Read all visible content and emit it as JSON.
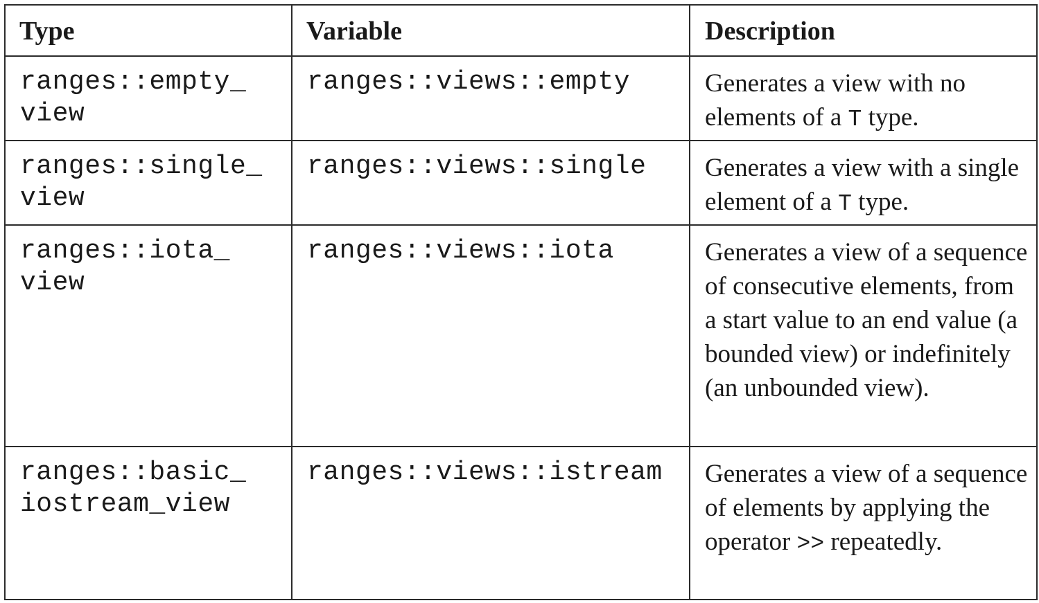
{
  "headers": {
    "type": "Type",
    "variable": "Variable",
    "description": "Description"
  },
  "rows": [
    {
      "type": "ranges::empty_\nview",
      "variable": "ranges::views::empty",
      "description": {
        "before": "Generates a view with no elements of a ",
        "code": "T",
        "after": " type."
      }
    },
    {
      "type": "ranges::single_\nview",
      "variable": "ranges::views::single",
      "description": {
        "before": "Generates a view with a single element of a ",
        "code": "T",
        "after": " type."
      }
    },
    {
      "type": "ranges::iota_\nview",
      "variable": "ranges::views::iota",
      "description": {
        "before": "Generates a view of a sequence of consecutive elements, from a start value to an end value (a bounded view) or indefinitely (an unbounded view).",
        "code": "",
        "after": ""
      }
    },
    {
      "type": "ranges::basic_\niostream_view",
      "variable": "ranges::views::istream",
      "description": {
        "before": "Generates a view of a sequence of elements by applying the operator ",
        "code": ">>",
        "after": " repeatedly."
      }
    }
  ]
}
